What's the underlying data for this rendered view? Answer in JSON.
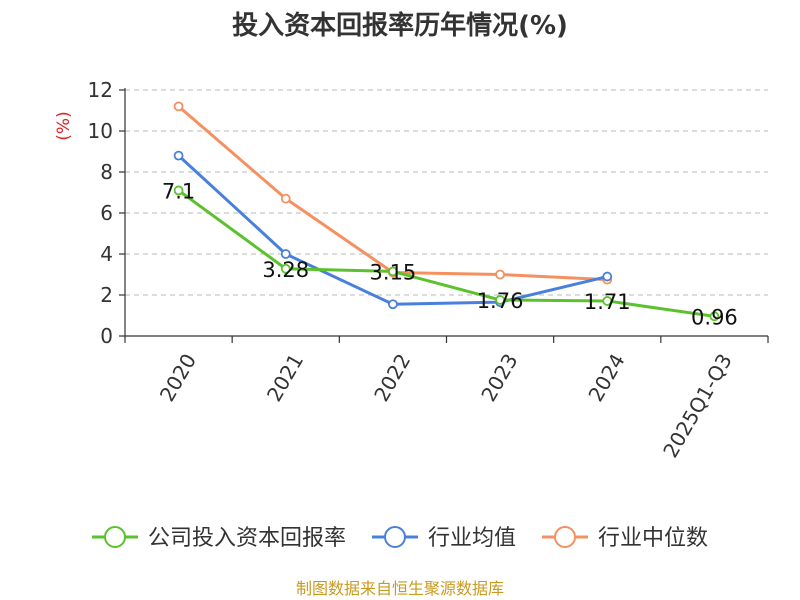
{
  "chart_data": {
    "type": "line",
    "title": "投入资本回报率历年情况(%)",
    "ylabel": "(%)",
    "categories": [
      "2020",
      "2021",
      "2022",
      "2023",
      "2024",
      "2025Q1-Q3"
    ],
    "ylim": [
      0,
      12
    ],
    "yticks": [
      0,
      2,
      4,
      6,
      8,
      10,
      12
    ],
    "grid": true,
    "legend_position": "bottom",
    "series": [
      {
        "name": "公司投入资本回报率",
        "color": "#5bc22d",
        "values": [
          7.1,
          3.28,
          3.15,
          1.76,
          1.71,
          0.96
        ],
        "labels": [
          "7.1",
          "3.28",
          "3.15",
          "1.76",
          "1.71",
          "0.96"
        ]
      },
      {
        "name": "行业均值",
        "color": "#4a80dc",
        "values": [
          8.8,
          4.0,
          1.55,
          1.65,
          2.9,
          null
        ]
      },
      {
        "name": "行业中位数",
        "color": "#f59060",
        "values": [
          11.2,
          6.7,
          3.1,
          3.0,
          2.75,
          null
        ]
      }
    ]
  },
  "source": "制图数据来自恒生聚源数据库"
}
